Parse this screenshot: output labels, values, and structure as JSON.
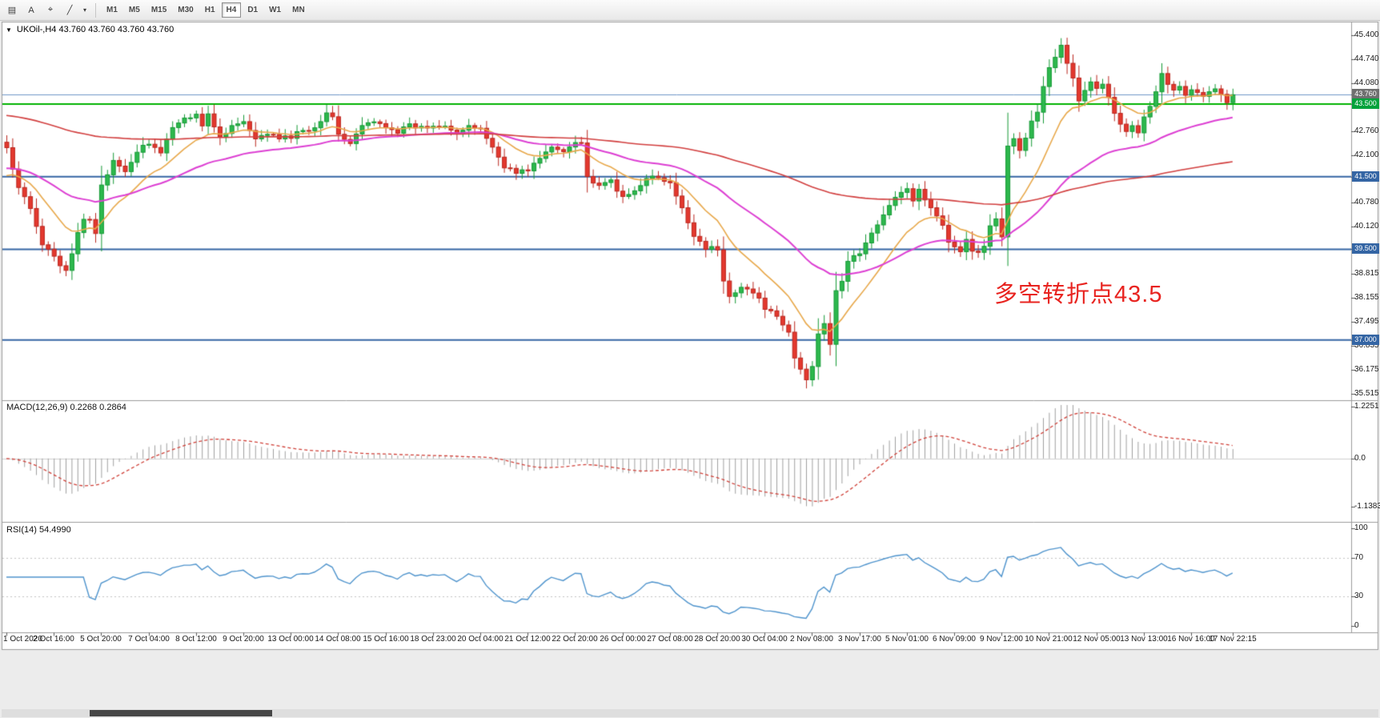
{
  "toolbar": {
    "tools": [
      {
        "name": "chart-window-icon",
        "glyph": "▤"
      },
      {
        "name": "arrow-tool",
        "glyph": "A"
      },
      {
        "name": "crosshair-tool",
        "glyph": "⌖"
      },
      {
        "name": "trendline-tool",
        "glyph": "╱"
      },
      {
        "name": "tools-dropdown-icon",
        "glyph": "▾"
      }
    ],
    "timeframes": [
      "M1",
      "M5",
      "M15",
      "M30",
      "H1",
      "H4",
      "D1",
      "W1",
      "MN"
    ],
    "active_timeframe": "H4"
  },
  "chart": {
    "collapse_glyph": "▼",
    "symbol_line": "UKOil-,H4 43.760 43.760 43.760 43.760",
    "annotation": {
      "text": "多空转折点43.5",
      "color": "#e8231f"
    },
    "price_axis": {
      "ticks": [
        "45.400",
        "44.740",
        "44.080",
        "42.760",
        "42.100",
        "40.780",
        "40.120",
        "38.815",
        "38.155",
        "37.495",
        "36.835",
        "36.175",
        "35.515"
      ],
      "badges": [
        {
          "label": "43.760",
          "price": 43.76,
          "color": "#6f6f6f"
        },
        {
          "label": "43.500",
          "price": 43.5,
          "color": "#00a23c"
        },
        {
          "label": "41.500",
          "price": 41.5,
          "color": "#3465a4"
        },
        {
          "label": "39.500",
          "price": 39.5,
          "color": "#3465a4"
        },
        {
          "label": "37.000",
          "price": 37.0,
          "color": "#3465a4"
        }
      ]
    },
    "time_axis": [
      "1 Oct 2020",
      "2 Oct 16:00",
      "5 Oct 20:00",
      "7 Oct 04:00",
      "8 Oct 12:00",
      "9 Oct 20:00",
      "13 Oct 00:00",
      "14 Oct 08:00",
      "15 Oct 16:00",
      "18 Oct 23:00",
      "20 Oct 04:00",
      "21 Oct 12:00",
      "22 Oct 20:00",
      "26 Oct 00:00",
      "27 Oct 08:00",
      "28 Oct 20:00",
      "30 Oct 04:00",
      "2 Nov 08:00",
      "3 Nov 17:00",
      "5 Nov 01:00",
      "6 Nov 09:00",
      "9 Nov 12:00",
      "10 Nov 21:00",
      "12 Nov 05:00",
      "13 Nov 13:00",
      "16 Nov 16:00",
      "17 Nov 22:15"
    ]
  },
  "macd": {
    "label": "MACD(12,26,9) 0.2268 0.2864",
    "axis_labels": [
      "1.2251",
      "0.0",
      "-1.1383"
    ]
  },
  "rsi": {
    "label": "RSI(14) 54.4990",
    "axis_labels": [
      "100",
      "70",
      "30",
      "0"
    ],
    "levels": [
      70,
      30
    ]
  },
  "chart_data": {
    "type": "candlestick",
    "symbol": "UKOil-",
    "timeframe": "H4",
    "ohlc_current": [
      43.76,
      43.76,
      43.76,
      43.76
    ],
    "last_price": 43.76,
    "y_range": [
      35.515,
      45.4
    ],
    "num_candles": 208,
    "horizontal_levels": [
      {
        "price": 43.76,
        "color": "#7096c8",
        "width": 1
      },
      {
        "price": 43.5,
        "color": "#00b200",
        "width": 2
      },
      {
        "price": 41.5,
        "color": "#3465a4",
        "width": 2
      },
      {
        "price": 39.5,
        "color": "#3465a4",
        "width": 2
      },
      {
        "price": 37.0,
        "color": "#3465a4",
        "width": 2
      }
    ],
    "close_waypoints": [
      [
        0,
        42.3
      ],
      [
        1,
        41.7
      ],
      [
        2,
        41.2
      ],
      [
        3,
        40.9
      ],
      [
        4,
        40.6
      ],
      [
        5,
        40.1
      ],
      [
        6,
        39.6
      ],
      [
        7,
        39.5
      ],
      [
        8,
        39.35
      ],
      [
        9,
        39.1
      ],
      [
        10,
        38.95
      ],
      [
        11,
        39.4
      ],
      [
        12,
        39.9
      ],
      [
        13,
        40.3
      ],
      [
        14,
        40.3
      ],
      [
        15,
        39.95
      ],
      [
        16,
        41.3
      ],
      [
        18,
        41.9
      ],
      [
        20,
        41.6
      ],
      [
        22,
        42.2
      ],
      [
        24,
        42.45
      ],
      [
        26,
        42.1
      ],
      [
        28,
        42.9
      ],
      [
        30,
        43.1
      ],
      [
        32,
        43.25
      ],
      [
        33,
        42.9
      ],
      [
        34,
        43.2
      ],
      [
        36,
        42.6
      ],
      [
        38,
        42.9
      ],
      [
        40,
        43.0
      ],
      [
        42,
        42.5
      ],
      [
        44,
        42.7
      ],
      [
        46,
        42.55
      ],
      [
        48,
        42.6
      ],
      [
        50,
        42.8
      ],
      [
        52,
        42.85
      ],
      [
        54,
        43.3
      ],
      [
        55,
        43.1
      ],
      [
        56,
        42.7
      ],
      [
        58,
        42.4
      ],
      [
        60,
        42.9
      ],
      [
        62,
        43.0
      ],
      [
        64,
        42.9
      ],
      [
        66,
        42.75
      ],
      [
        68,
        42.9
      ],
      [
        70,
        42.85
      ],
      [
        72,
        42.9
      ],
      [
        74,
        42.95
      ],
      [
        76,
        42.7
      ],
      [
        78,
        42.85
      ],
      [
        80,
        42.85
      ],
      [
        82,
        42.3
      ],
      [
        84,
        41.8
      ],
      [
        86,
        41.6
      ],
      [
        88,
        41.7
      ],
      [
        90,
        42.0
      ],
      [
        92,
        42.3
      ],
      [
        94,
        42.2
      ],
      [
        96,
        42.5
      ],
      [
        97,
        42.45
      ],
      [
        98,
        41.5
      ],
      [
        100,
        41.2
      ],
      [
        102,
        41.4
      ],
      [
        104,
        40.9
      ],
      [
        106,
        41.1
      ],
      [
        108,
        41.5
      ],
      [
        110,
        41.45
      ],
      [
        112,
        41.3
      ],
      [
        114,
        40.6
      ],
      [
        116,
        39.9
      ],
      [
        118,
        39.55
      ],
      [
        120,
        39.5
      ],
      [
        121,
        38.6
      ],
      [
        122,
        38.2
      ],
      [
        124,
        38.5
      ],
      [
        126,
        38.3
      ],
      [
        128,
        37.9
      ],
      [
        130,
        37.6
      ],
      [
        132,
        37.2
      ],
      [
        133,
        36.5
      ],
      [
        134,
        36.2
      ],
      [
        135,
        35.9
      ],
      [
        136,
        36.3
      ],
      [
        137,
        37.2
      ],
      [
        138,
        37.5
      ],
      [
        139,
        36.9
      ],
      [
        140,
        38.3
      ],
      [
        141,
        38.6
      ],
      [
        142,
        39.2
      ],
      [
        144,
        39.4
      ],
      [
        146,
        39.9
      ],
      [
        148,
        40.5
      ],
      [
        150,
        40.9
      ],
      [
        152,
        41.2
      ],
      [
        153,
        40.8
      ],
      [
        154,
        41.1
      ],
      [
        156,
        40.7
      ],
      [
        158,
        40.2
      ],
      [
        159,
        39.7
      ],
      [
        160,
        39.6
      ],
      [
        161,
        39.4
      ],
      [
        162,
        39.8
      ],
      [
        163,
        39.5
      ],
      [
        164,
        39.45
      ],
      [
        165,
        39.6
      ],
      [
        166,
        40.2
      ],
      [
        167,
        40.3
      ],
      [
        168,
        39.9
      ],
      [
        169,
        42.3
      ],
      [
        170,
        42.6
      ],
      [
        171,
        42.2
      ],
      [
        172,
        42.6
      ],
      [
        173,
        43.0
      ],
      [
        174,
        43.3
      ],
      [
        175,
        44.0
      ],
      [
        176,
        44.5
      ],
      [
        177,
        44.8
      ],
      [
        178,
        45.1
      ],
      [
        179,
        44.6
      ],
      [
        180,
        44.2
      ],
      [
        181,
        43.6
      ],
      [
        182,
        43.9
      ],
      [
        183,
        44.1
      ],
      [
        184,
        43.9
      ],
      [
        185,
        44.0
      ],
      [
        186,
        43.7
      ],
      [
        187,
        43.3
      ],
      [
        188,
        43.0
      ],
      [
        189,
        42.7
      ],
      [
        190,
        42.9
      ],
      [
        191,
        42.7
      ],
      [
        192,
        43.1
      ],
      [
        193,
        43.4
      ],
      [
        194,
        43.8
      ],
      [
        195,
        44.3
      ],
      [
        196,
        44.1
      ],
      [
        197,
        43.9
      ],
      [
        198,
        44.0
      ],
      [
        199,
        43.8
      ],
      [
        200,
        43.9
      ],
      [
        202,
        43.7
      ],
      [
        204,
        43.9
      ],
      [
        206,
        43.6
      ],
      [
        207,
        43.76
      ]
    ],
    "moving_averages": [
      {
        "name": "fast-ma",
        "period": 13,
        "color": "#e8a84a",
        "seed": 41.4
      },
      {
        "name": "medium-ma",
        "period": 40,
        "color": "#dd3fd3",
        "seed": 41.7
      },
      {
        "name": "slow-ma",
        "period": 150,
        "color": "#d23f3f",
        "seed": 43.2
      }
    ],
    "macd_params": {
      "fast": 12,
      "slow": 26,
      "signal": 9,
      "axis_max": 1.2251,
      "axis_min": -1.1383,
      "histogram_color": "#a0a0a0",
      "signal_color": "#d04038"
    },
    "rsi_params": {
      "period": 14,
      "current": 54.499,
      "line_color": "#4f94cd"
    },
    "candle_colors": {
      "up": "#2db84d",
      "up_border": "#159a36",
      "down": "#e3382e",
      "down_border": "#bb271f"
    }
  }
}
